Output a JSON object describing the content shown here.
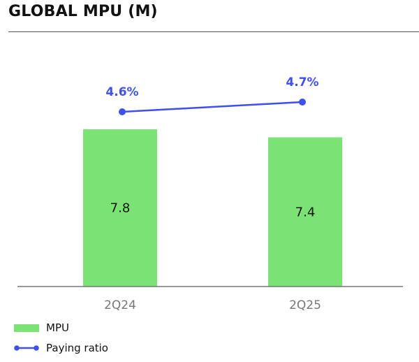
{
  "chart_data": {
    "type": "bar",
    "title": "GLOBAL MPU (M)",
    "categories": [
      "2Q24",
      "2Q25"
    ],
    "series": [
      {
        "name": "MPU",
        "kind": "bar",
        "values": [
          7.8,
          7.4
        ],
        "color": "#7be274",
        "labels": [
          "7.8",
          "7.4"
        ]
      },
      {
        "name": "Paying ratio",
        "kind": "line",
        "values": [
          4.6,
          4.7
        ],
        "color": "#3f4ff0",
        "labels": [
          "4.6%",
          "4.7%"
        ]
      }
    ],
    "xlabel": "",
    "ylabel": "",
    "legend": "bottom-left",
    "grid": false
  },
  "legend": {
    "mpu": "MPU",
    "paying_ratio": "Paying ratio"
  }
}
